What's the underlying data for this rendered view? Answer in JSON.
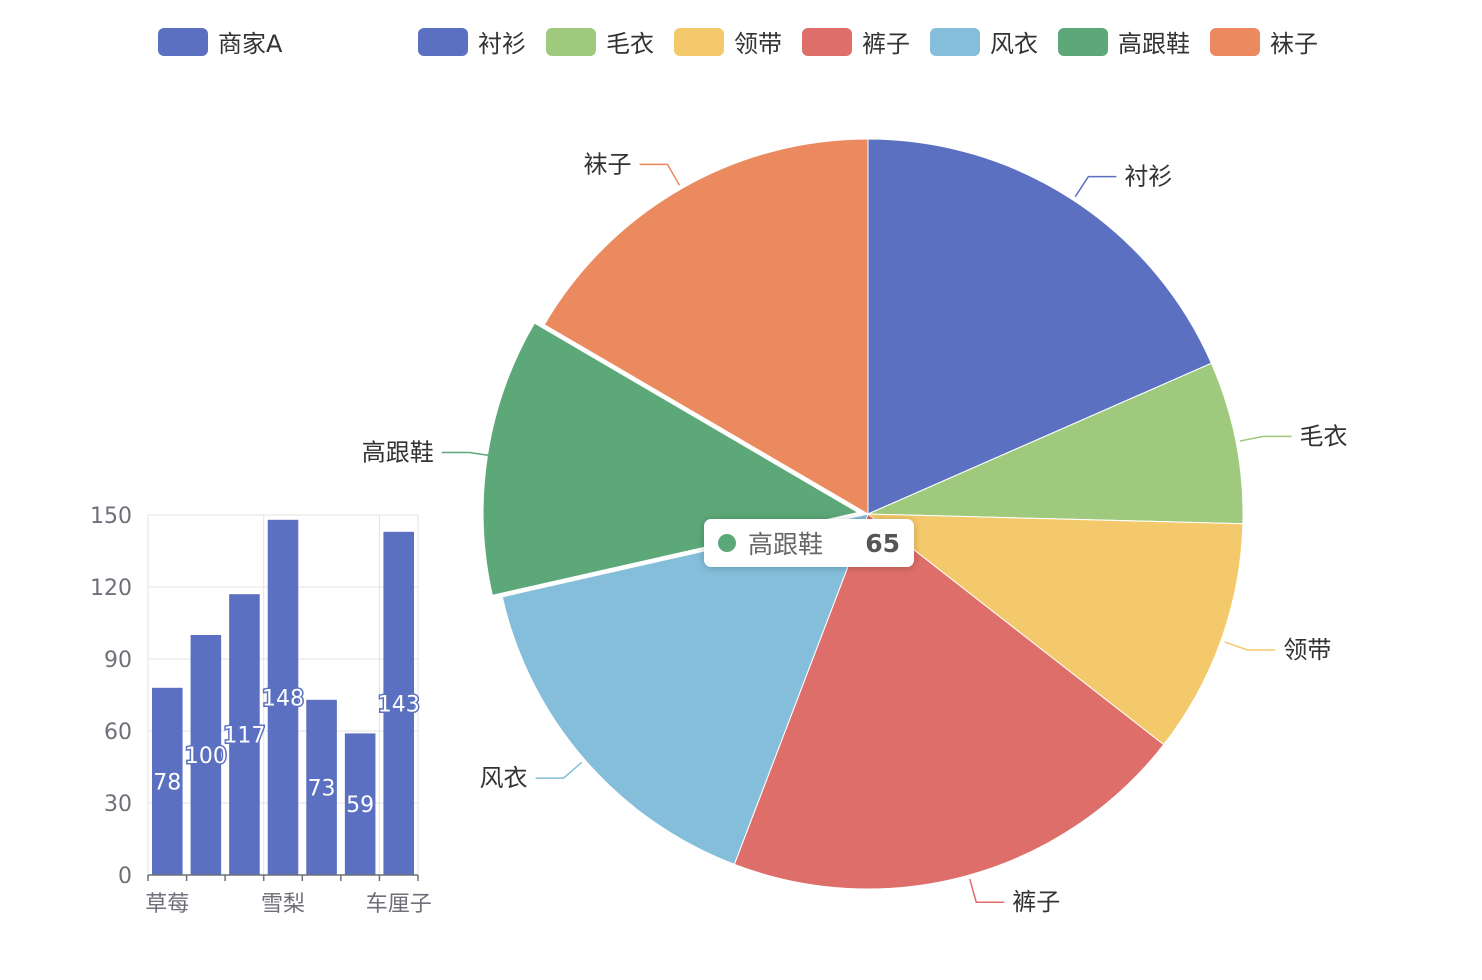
{
  "chart_data": [
    {
      "type": "bar",
      "categories": [
        "草莓",
        "",
        "",
        "雪梨",
        "",
        "",
        "车厘子"
      ],
      "series": [
        {
          "name": "商家A",
          "values": [
            78,
            100,
            117,
            148,
            73,
            59,
            143
          ],
          "color": "#5b70c1"
        }
      ],
      "ylim": [
        0,
        150
      ],
      "yticks": [
        "0",
        "30",
        "60",
        "90",
        "120",
        "150"
      ],
      "grid": true,
      "data_labels": true
    },
    {
      "type": "pie",
      "labels": [
        "衬衫",
        "毛衣",
        "领带",
        "裤子",
        "风衣",
        "高跟鞋",
        "袜子"
      ],
      "colors": [
        "#5b70c1",
        "#9fca7e",
        "#f3c96b",
        "#de6e6a",
        "#84bedb",
        "#5ca878",
        "#eb8a5e"
      ],
      "values": [
        100,
        38,
        55,
        110,
        85,
        65,
        90
      ],
      "emphasis": "高跟鞋"
    }
  ],
  "legend": {
    "bar": {
      "label": "商家A",
      "color": "#5b70c1"
    },
    "pie": [
      {
        "label": "衬衫",
        "color": "#5b70c1"
      },
      {
        "label": "毛衣",
        "color": "#9fca7e"
      },
      {
        "label": "领带",
        "color": "#f3c96b"
      },
      {
        "label": "裤子",
        "color": "#de6e6a"
      },
      {
        "label": "风衣",
        "color": "#84bedb"
      },
      {
        "label": "高跟鞋",
        "color": "#5ca878"
      },
      {
        "label": "袜子",
        "color": "#eb8a5e"
      }
    ]
  },
  "tooltip": {
    "name": "高跟鞋",
    "value": "65",
    "color": "#5ca878"
  }
}
